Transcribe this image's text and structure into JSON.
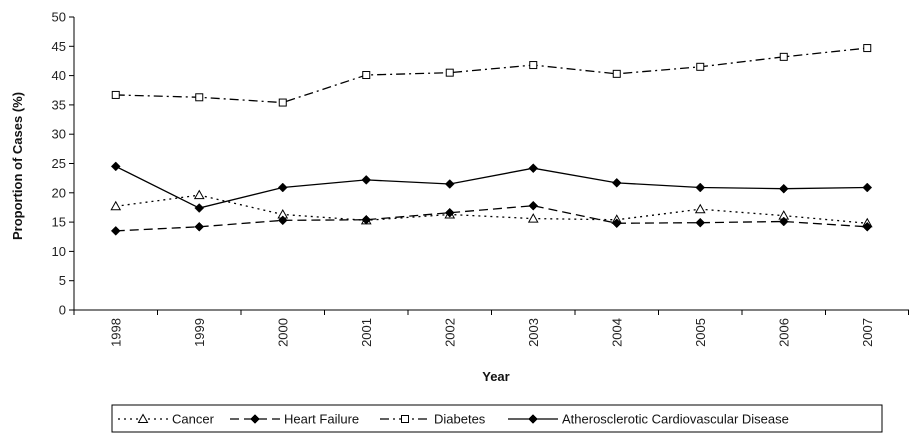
{
  "chart_data": {
    "type": "line",
    "xlabel": "Year",
    "ylabel": "Proportion of Cases (%)",
    "categories": [
      "1998",
      "1999",
      "2000",
      "2001",
      "2002",
      "2003",
      "2004",
      "2005",
      "2006",
      "2007"
    ],
    "ylim": [
      0,
      50
    ],
    "yticks": [
      0,
      5,
      10,
      15,
      20,
      25,
      30,
      35,
      40,
      45,
      50
    ],
    "grid": false,
    "legend_position": "bottom",
    "series": [
      {
        "name": "Cancer",
        "marker": "triangle-open",
        "dash": "dotted",
        "color": "#000000",
        "values": [
          17.7,
          19.6,
          16.3,
          15.3,
          16.3,
          15.6,
          15.4,
          17.2,
          16.1,
          14.8
        ]
      },
      {
        "name": "Heart Failure",
        "marker": "diamond-filled",
        "dash": "dashed",
        "color": "#000000",
        "values": [
          13.5,
          14.2,
          15.3,
          15.4,
          16.6,
          17.8,
          14.8,
          14.9,
          15.1,
          14.2
        ]
      },
      {
        "name": "Diabetes",
        "marker": "square-open",
        "dash": "dash-dot",
        "color": "#000000",
        "values": [
          36.7,
          36.3,
          35.4,
          40.1,
          40.5,
          41.8,
          40.3,
          41.5,
          43.2,
          44.7
        ]
      },
      {
        "name": "Atherosclerotic Cardiovascular Disease",
        "marker": "diamond-filled",
        "dash": "solid",
        "color": "#000000",
        "values": [
          24.5,
          17.4,
          20.9,
          22.2,
          21.5,
          24.2,
          21.7,
          20.9,
          20.7,
          20.9
        ]
      }
    ]
  }
}
